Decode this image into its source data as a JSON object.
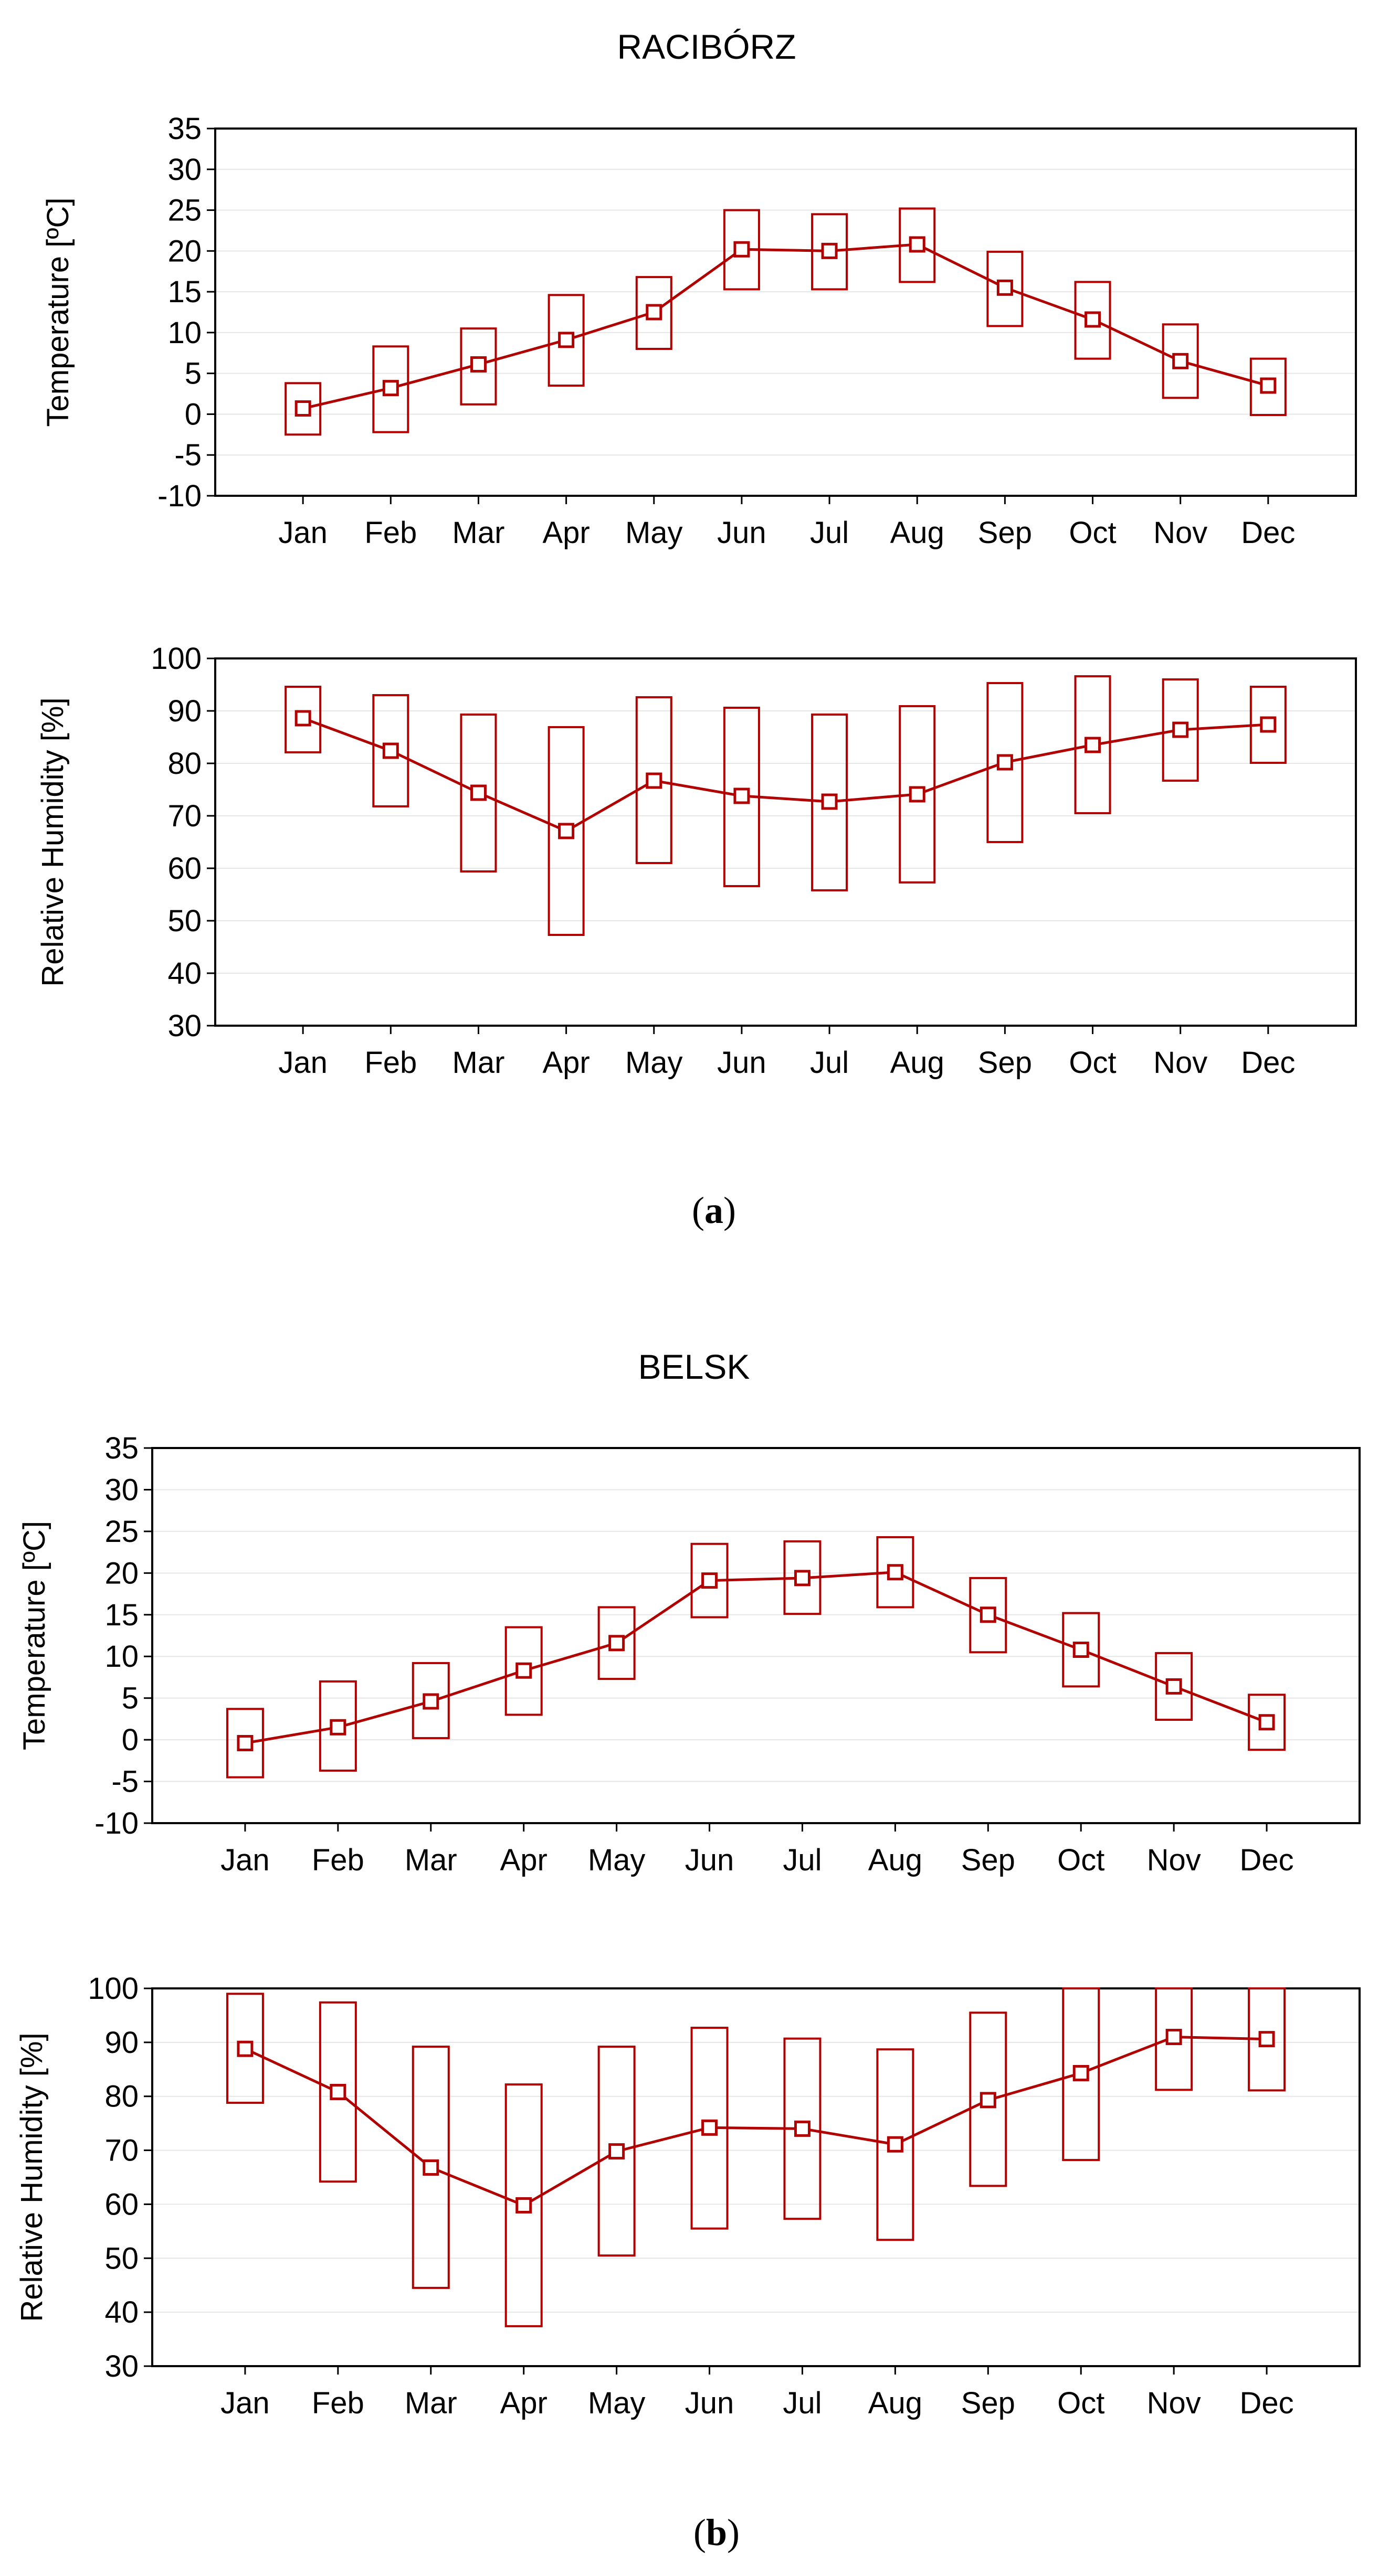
{
  "months": [
    "Jan",
    "Feb",
    "Mar",
    "Apr",
    "May",
    "Jun",
    "Jul",
    "Aug",
    "Sep",
    "Oct",
    "Nov",
    "Dec"
  ],
  "colors": {
    "series": "#b00000",
    "grid": "#e6e6e6",
    "axis": "#000000"
  },
  "panels": [
    {
      "title": "RACIBÓRZ",
      "caption_open": "(",
      "caption_letter": "a",
      "caption_close": ")"
    },
    {
      "title": "BELSK",
      "caption_open": "(",
      "caption_letter": "b",
      "caption_close": ")"
    }
  ],
  "chart_data": [
    {
      "type": "line",
      "station": "RACIBÓRZ",
      "ylabel": "Temperature [ºC]",
      "ylim": [
        -10,
        35
      ],
      "yticks": [
        -10,
        -5,
        0,
        5,
        10,
        15,
        20,
        25,
        30,
        35
      ],
      "categories": [
        "Jan",
        "Feb",
        "Mar",
        "Apr",
        "May",
        "Jun",
        "Jul",
        "Aug",
        "Sep",
        "Oct",
        "Nov",
        "Dec"
      ],
      "mean": [
        0.7,
        3.2,
        6.1,
        9.1,
        12.5,
        20.2,
        20.0,
        20.8,
        15.5,
        11.6,
        6.5,
        3.5
      ],
      "box_low": [
        -2.5,
        -2.2,
        1.2,
        3.5,
        8.0,
        15.3,
        15.3,
        16.2,
        10.8,
        6.8,
        2.0,
        -0.1
      ],
      "box_high": [
        3.8,
        8.3,
        10.5,
        14.6,
        16.8,
        25.0,
        24.5,
        25.2,
        19.9,
        16.2,
        11.0,
        6.8
      ]
    },
    {
      "type": "line",
      "station": "RACIBÓRZ",
      "ylabel": "Relative Humidity [%]",
      "ylim": [
        30,
        100
      ],
      "yticks": [
        30,
        40,
        50,
        60,
        70,
        80,
        90,
        100
      ],
      "categories": [
        "Jan",
        "Feb",
        "Mar",
        "Apr",
        "May",
        "Jun",
        "Jul",
        "Aug",
        "Sep",
        "Oct",
        "Nov",
        "Dec"
      ],
      "mean": [
        88.6,
        82.4,
        74.4,
        67.1,
        76.7,
        73.8,
        72.7,
        74.1,
        80.2,
        83.5,
        86.4,
        87.4
      ],
      "box_low": [
        82.1,
        71.8,
        59.4,
        47.3,
        61.0,
        56.6,
        55.8,
        57.3,
        65.0,
        70.5,
        76.7,
        80.1
      ],
      "box_high": [
        94.6,
        93.0,
        89.3,
        86.9,
        92.6,
        90.6,
        89.3,
        90.9,
        95.3,
        96.6,
        96.0,
        94.6
      ]
    },
    {
      "type": "line",
      "station": "BELSK",
      "ylabel": "Temperature [ºC]",
      "ylim": [
        -10,
        35
      ],
      "yticks": [
        -10,
        -5,
        0,
        5,
        10,
        15,
        20,
        25,
        30,
        35
      ],
      "categories": [
        "Jan",
        "Feb",
        "Mar",
        "Apr",
        "May",
        "Jun",
        "Jul",
        "Aug",
        "Sep",
        "Oct",
        "Nov",
        "Dec"
      ],
      "mean": [
        -0.4,
        1.5,
        4.6,
        8.3,
        11.6,
        19.1,
        19.4,
        20.1,
        15.0,
        10.8,
        6.4,
        2.1
      ],
      "box_low": [
        -4.5,
        -3.7,
        0.2,
        3.0,
        7.3,
        14.7,
        15.1,
        15.9,
        10.5,
        6.4,
        2.4,
        -1.2
      ],
      "box_high": [
        3.7,
        7.0,
        9.2,
        13.5,
        15.9,
        23.5,
        23.8,
        24.3,
        19.4,
        15.2,
        10.4,
        5.4
      ]
    },
    {
      "type": "line",
      "station": "BELSK",
      "ylabel": "Relative Humidity [%]",
      "ylim": [
        30,
        100
      ],
      "yticks": [
        30,
        40,
        50,
        60,
        70,
        80,
        90,
        100
      ],
      "categories": [
        "Jan",
        "Feb",
        "Mar",
        "Apr",
        "May",
        "Jun",
        "Jul",
        "Aug",
        "Sep",
        "Oct",
        "Nov",
        "Dec"
      ],
      "mean": [
        88.8,
        80.8,
        66.8,
        59.8,
        69.8,
        74.2,
        74.0,
        71.1,
        79.3,
        84.3,
        91.0,
        90.6
      ],
      "box_low": [
        78.8,
        64.2,
        44.5,
        37.4,
        50.5,
        55.5,
        57.3,
        53.4,
        63.4,
        68.2,
        81.2,
        81.1
      ],
      "box_high": [
        99.0,
        97.4,
        89.2,
        82.2,
        89.2,
        92.7,
        90.7,
        88.7,
        95.5,
        100.0,
        100.0,
        100.0
      ]
    }
  ]
}
